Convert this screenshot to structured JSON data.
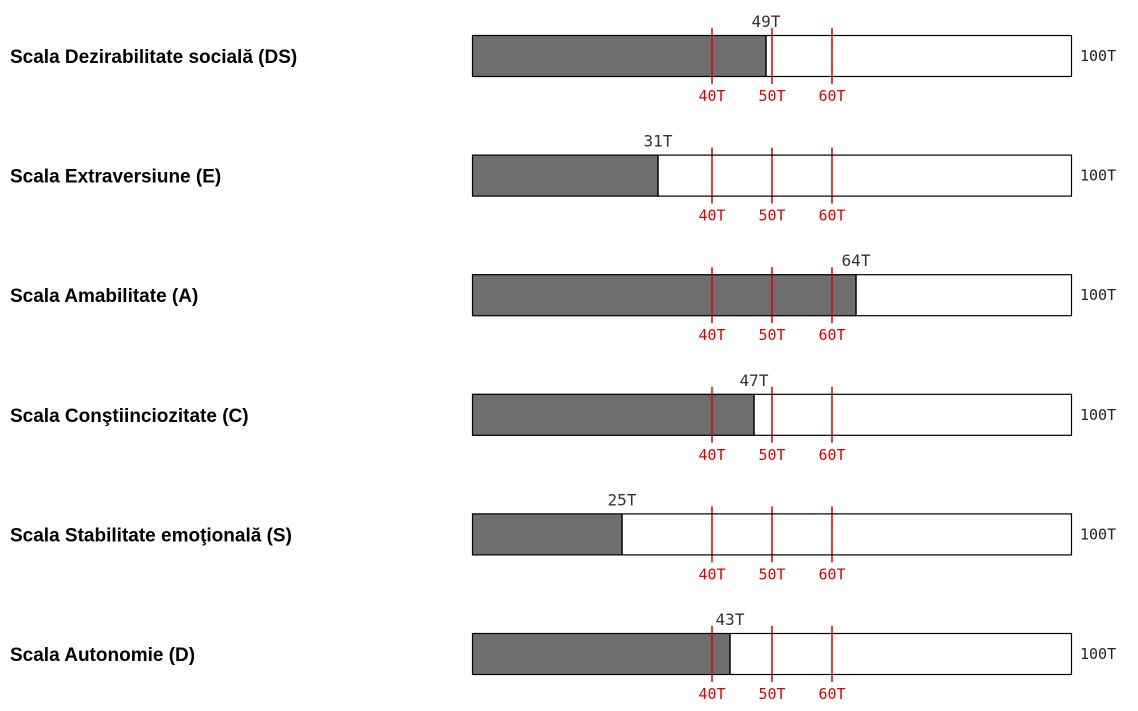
{
  "chart_data": {
    "type": "bar",
    "orientation": "horizontal",
    "xlim": [
      0,
      100
    ],
    "max_label": "100T",
    "reference_lines": [
      {
        "value": 40,
        "label": "40T"
      },
      {
        "value": 50,
        "label": "50T"
      },
      {
        "value": 60,
        "label": "60T"
      }
    ],
    "bars": [
      {
        "category": "Scala Dezirabilitate socială (DS)",
        "value": 49,
        "value_label": "49T"
      },
      {
        "category": "Scala Extraversiune (E)",
        "value": 31,
        "value_label": "31T"
      },
      {
        "category": "Scala Amabilitate (A)",
        "value": 64,
        "value_label": "64T"
      },
      {
        "category": "Scala Conştiinciozitate (C)",
        "value": 47,
        "value_label": "47T"
      },
      {
        "category": "Scala Stabilitate emoţională (S)",
        "value": 25,
        "value_label": "25T"
      },
      {
        "category": "Scala Autonomie (D)",
        "value": 43,
        "value_label": "43T"
      }
    ],
    "colors": {
      "fill": "#6e6e6e",
      "track": "#ffffff",
      "border": "#000000",
      "reference": "#e00000"
    }
  }
}
